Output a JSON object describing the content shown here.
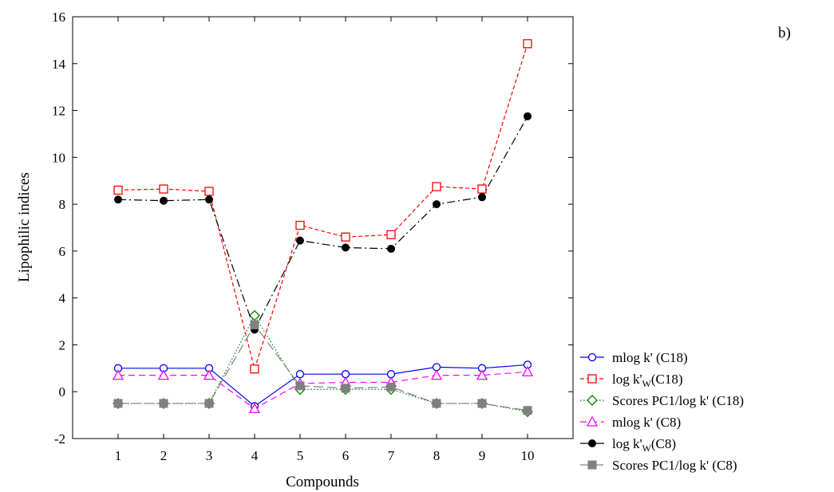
{
  "chart_data": {
    "type": "line",
    "panel_label": "b)",
    "xlabel": "Compounds",
    "ylabel": "Lipophilic indices",
    "x": [
      1,
      2,
      3,
      4,
      5,
      6,
      7,
      8,
      9,
      10
    ],
    "x_ticks": [
      "1",
      "2",
      "3",
      "4",
      "5",
      "6",
      "7",
      "8",
      "9",
      "10"
    ],
    "xlim": [
      0,
      11
    ],
    "ylim": [
      -2,
      16
    ],
    "y_ticks": [
      "-2",
      "0",
      "2",
      "4",
      "6",
      "8",
      "10",
      "12",
      "14",
      "16"
    ],
    "grid": false,
    "legend_position": "bottom-right, outside plot",
    "series": [
      {
        "name": "mlog k' (C18)",
        "legend_main": "mlog k' (C18)",
        "color": "#0000ff",
        "marker": "circle",
        "dash": "solid",
        "values": [
          1.0,
          1.0,
          1.0,
          -0.62,
          0.75,
          0.75,
          0.75,
          1.05,
          1.0,
          1.15
        ]
      },
      {
        "name": "log k'W (C18)",
        "legend_main": "log k'",
        "legend_sub": "W",
        "legend_tail": "(C18)",
        "color": "#ff0000",
        "marker": "square-open",
        "dash": "short",
        "values": [
          8.6,
          8.65,
          8.55,
          0.97,
          7.1,
          6.6,
          6.7,
          8.75,
          8.65,
          14.85
        ]
      },
      {
        "name": "Scores PC1/log k' (C18)",
        "legend_main": "Scores PC1/log k' (C18)",
        "color": "#008000",
        "marker": "diamond-open",
        "dash": "dotted",
        "values": [
          -0.5,
          -0.5,
          -0.5,
          3.25,
          0.1,
          0.1,
          0.1,
          -0.5,
          -0.5,
          -0.85
        ]
      },
      {
        "name": "mlog k' (C8)",
        "legend_main": "mlog k' (C8)",
        "color": "#ff00ff",
        "marker": "triangle-open",
        "dash": "dash",
        "values": [
          0.7,
          0.7,
          0.7,
          -0.72,
          0.35,
          0.4,
          0.4,
          0.7,
          0.7,
          0.85
        ]
      },
      {
        "name": "log k'W (C8)",
        "legend_main": "log k'",
        "legend_sub": "W",
        "legend_tail": "(C8)",
        "color": "#000000",
        "marker": "circle-filled",
        "dash": "dashdot",
        "values": [
          8.2,
          8.15,
          8.2,
          2.65,
          6.45,
          6.15,
          6.1,
          8.0,
          8.3,
          11.75
        ]
      },
      {
        "name": "Scores PC1/log k' (C8)",
        "legend_main": "Scores PC1/log k' (C8)",
        "color": "#808080",
        "marker": "square-filled",
        "dash": "longdash",
        "values": [
          -0.5,
          -0.5,
          -0.5,
          2.85,
          0.25,
          0.15,
          0.2,
          -0.5,
          -0.5,
          -0.8
        ]
      }
    ]
  }
}
